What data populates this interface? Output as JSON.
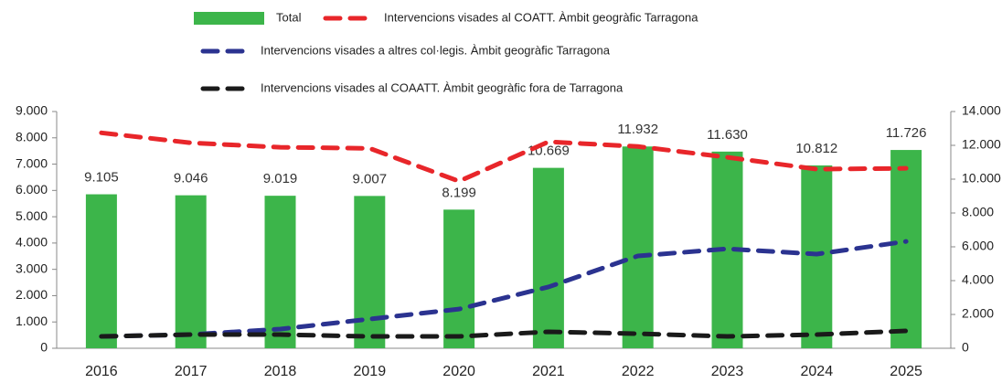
{
  "chart_data": {
    "type": "bar-line",
    "categories": [
      "2016",
      "2017",
      "2018",
      "2019",
      "2020",
      "2021",
      "2022",
      "2023",
      "2024",
      "2025"
    ],
    "series": [
      {
        "name": "Total",
        "type": "bar",
        "axis": "y2",
        "color": "#3cb54a",
        "values": [
          9105,
          9046,
          9019,
          9007,
          8199,
          10669,
          11932,
          11630,
          10812,
          11726
        ],
        "value_labels": [
          "9.105",
          "9.046",
          "9.019",
          "9.007",
          "8.199",
          "10.669",
          "11.932",
          "11.630",
          "10.812",
          "11.726"
        ]
      },
      {
        "name": "Intervencions visades al COATT. Àmbit geogràfic Tarragona",
        "type": "line",
        "color": "#e8262a",
        "values": [
          8190,
          7810,
          7640,
          7600,
          6350,
          7850,
          7670,
          7260,
          6810,
          6840
        ]
      },
      {
        "name": "Intervencions visades a altres col·legis. Àmbit geogràfic Tarragona",
        "type": "line",
        "color": "#2b3390",
        "values": [
          450,
          520,
          730,
          1110,
          1490,
          2330,
          3510,
          3780,
          3580,
          4060
        ]
      },
      {
        "name": "Intervencions visades al COAATT. Àmbit geogràfic fora de Tarragona",
        "type": "line",
        "color": "#1a1a1a",
        "values": [
          450,
          520,
          520,
          450,
          450,
          625,
          555,
          450,
          520,
          660
        ]
      }
    ],
    "ylim": [
      0,
      9000
    ],
    "yticks": [
      0,
      {
        "value": 1000,
        "label": "1.000"
      },
      {
        "value": 2000,
        "label": "2.000"
      },
      {
        "value": 3000,
        "label": "3.000"
      },
      {
        "value": 4000,
        "label": "4.000"
      },
      {
        "value": 5000,
        "label": "5.000"
      },
      {
        "value": 6000,
        "label": "6.000"
      },
      {
        "value": 7000,
        "label": "7.000"
      },
      {
        "value": 8000,
        "label": "8.000"
      },
      {
        "value": 9000,
        "label": "9.000"
      }
    ],
    "y2lim": [
      0,
      14000
    ],
    "y2ticks": [
      0,
      {
        "value": 2000,
        "label": "2.000"
      },
      {
        "value": 4000,
        "label": "4.000"
      },
      {
        "value": 6000,
        "label": "6.000"
      },
      {
        "value": 8000,
        "label": "8.000"
      },
      {
        "value": 10000,
        "label": "10.000"
      },
      {
        "value": 12000,
        "label": "12.000"
      },
      {
        "value": 14000,
        "label": "14.000"
      }
    ]
  }
}
